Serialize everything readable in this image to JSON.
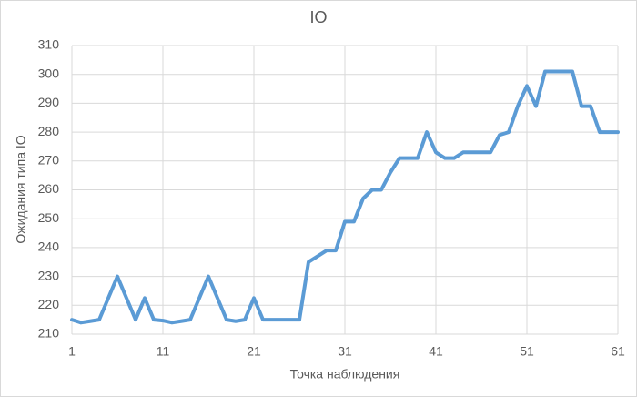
{
  "chart_data": {
    "type": "line",
    "title": "IO",
    "x_label": "Точка наблюдения",
    "y_label": "Ожидания типа IO",
    "x": [
      1,
      2,
      3,
      4,
      5,
      6,
      7,
      8,
      9,
      10,
      11,
      12,
      13,
      14,
      15,
      16,
      17,
      18,
      19,
      20,
      21,
      22,
      23,
      24,
      25,
      26,
      27,
      28,
      29,
      30,
      31,
      32,
      33,
      34,
      35,
      36,
      37,
      38,
      39,
      40,
      41,
      42,
      43,
      44,
      45,
      46,
      47,
      48,
      49,
      50,
      51,
      52,
      53,
      54,
      55,
      56,
      57,
      58,
      59,
      60,
      61
    ],
    "series": [
      {
        "name": "IO",
        "color": "#5b9bd5",
        "values": [
          215,
          214,
          214.5,
          215,
          222.5,
          230,
          222.5,
          215,
          222.5,
          215,
          214.7,
          214,
          214.5,
          215,
          222.5,
          230,
          222.5,
          215,
          214.5,
          215,
          222.5,
          215,
          215,
          215,
          215,
          215,
          235,
          237,
          239,
          239,
          249,
          249,
          257,
          260,
          260,
          266,
          271,
          271,
          271,
          280,
          273,
          271,
          271,
          273,
          273,
          273,
          273,
          279,
          280,
          289,
          296,
          289,
          301,
          301,
          301,
          301,
          289,
          289,
          280,
          280,
          280
        ]
      }
    ],
    "xlim": [
      1,
      61
    ],
    "xticks": [
      1,
      11,
      21,
      31,
      41,
      51,
      61
    ],
    "ylim": [
      210,
      310
    ],
    "yticks": [
      210,
      220,
      230,
      240,
      250,
      260,
      270,
      280,
      290,
      300,
      310
    ],
    "grid": true
  }
}
